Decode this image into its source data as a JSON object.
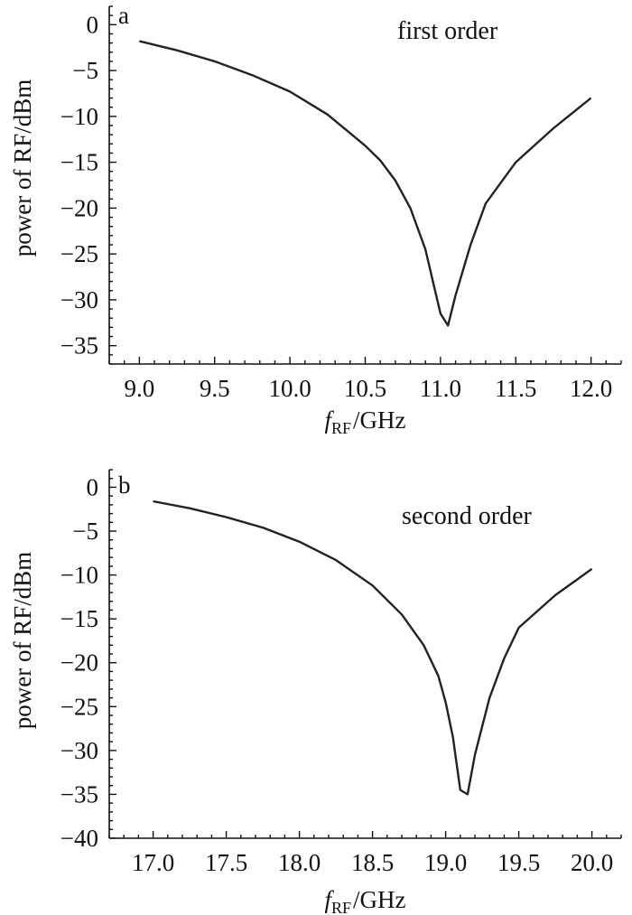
{
  "chart_data": [
    {
      "type": "line",
      "panel_label": "a",
      "annotation": "first order",
      "xlabel_main": "f",
      "xlabel_sub": "RF",
      "xlabel_unit": "/GHz",
      "ylabel": "power of RF/dBm",
      "xlim": [
        8.8,
        12.2
      ],
      "ylim": [
        -37,
        2
      ],
      "xticks": [
        9.0,
        9.5,
        10.0,
        10.5,
        11.0,
        11.5,
        12.0
      ],
      "xtick_labels": [
        "9.0",
        "9.5",
        "10.0",
        "10.5",
        "11.0",
        "11.5",
        "12.0"
      ],
      "yticks": [
        0,
        -5,
        -10,
        -15,
        -20,
        -25,
        -30,
        -35
      ],
      "ytick_labels": [
        "0",
        "−5",
        "−10",
        "−15",
        "−20",
        "−25",
        "−30",
        "−35"
      ],
      "x": [
        9.0,
        9.25,
        9.5,
        9.75,
        10.0,
        10.25,
        10.5,
        10.6,
        10.7,
        10.8,
        10.9,
        10.95,
        11.0,
        11.05,
        11.1,
        11.2,
        11.3,
        11.5,
        11.75,
        12.0
      ],
      "y": [
        -1.8,
        -2.8,
        -4.0,
        -5.5,
        -7.3,
        -9.8,
        -13.2,
        -14.8,
        -17.0,
        -20.0,
        -24.5,
        -28.0,
        -31.5,
        -32.8,
        -29.5,
        -24.0,
        -19.5,
        -15.0,
        -11.3,
        -8.0
      ]
    },
    {
      "type": "line",
      "panel_label": "b",
      "annotation": "second order",
      "xlabel_main": "f",
      "xlabel_sub": "RF",
      "xlabel_unit": "/GHz",
      "ylabel": "power of RF/dBm",
      "xlim": [
        16.7,
        20.2
      ],
      "ylim": [
        -40,
        2
      ],
      "xticks": [
        17.0,
        17.5,
        18.0,
        18.5,
        19.0,
        19.5,
        20.0
      ],
      "xtick_labels": [
        "17.0",
        "17.5",
        "18.0",
        "18.5",
        "19.0",
        "19.5",
        "20.0"
      ],
      "yticks": [
        0,
        -5,
        -10,
        -15,
        -20,
        -25,
        -30,
        -35,
        -40
      ],
      "ytick_labels": [
        "0",
        "−5",
        "−10",
        "−15",
        "−20",
        "−25",
        "−30",
        "−35",
        "−40"
      ],
      "x": [
        17.0,
        17.25,
        17.5,
        17.75,
        18.0,
        18.25,
        18.5,
        18.7,
        18.85,
        18.95,
        19.0,
        19.05,
        19.1,
        19.15,
        19.2,
        19.3,
        19.4,
        19.5,
        19.75,
        20.0
      ],
      "y": [
        -1.6,
        -2.4,
        -3.4,
        -4.6,
        -6.2,
        -8.3,
        -11.2,
        -14.5,
        -18.0,
        -21.5,
        -24.5,
        -28.5,
        -34.5,
        -35.0,
        -30.5,
        -24.0,
        -19.5,
        -16.0,
        -12.3,
        -9.3
      ]
    }
  ]
}
